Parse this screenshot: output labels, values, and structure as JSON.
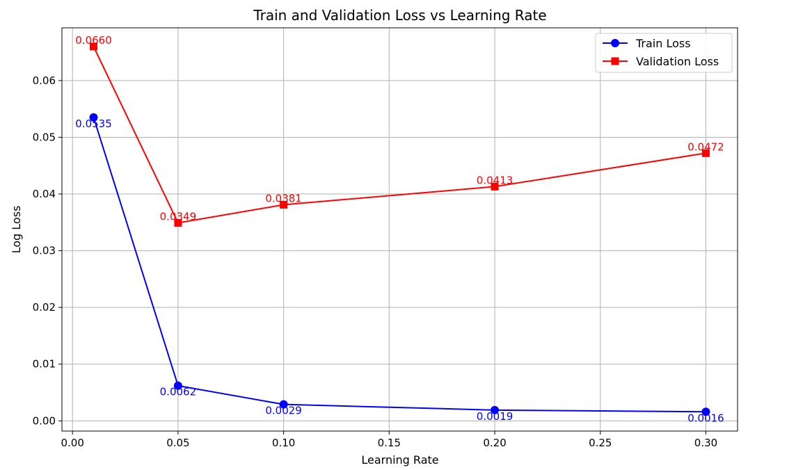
{
  "chart_data": {
    "type": "line",
    "title": "Train and Validation Loss vs Learning Rate",
    "xlabel": "Learning Rate",
    "ylabel": "Log Loss",
    "x": [
      0.01,
      0.05,
      0.1,
      0.2,
      0.3
    ],
    "xlim": [
      -0.005,
      0.315
    ],
    "ylim": [
      -0.0018,
      0.0693
    ],
    "xticks": [
      0.0,
      0.05,
      0.1,
      0.15,
      0.2,
      0.25,
      0.3
    ],
    "xtick_labels": [
      "0.00",
      "0.05",
      "0.10",
      "0.15",
      "0.20",
      "0.25",
      "0.30"
    ],
    "yticks": [
      0.0,
      0.01,
      0.02,
      0.03,
      0.04,
      0.05,
      0.06
    ],
    "ytick_labels": [
      "0.00",
      "0.01",
      "0.02",
      "0.03",
      "0.04",
      "0.05",
      "0.06"
    ],
    "grid": true,
    "legend_position": "top-right",
    "series": [
      {
        "name": "Train Loss",
        "color": "#0000ff",
        "marker": "circle",
        "values": [
          0.0535,
          0.0062,
          0.0029,
          0.0019,
          0.0016
        ],
        "labels": [
          "0.0535",
          "0.0062",
          "0.0029",
          "0.0019",
          "0.0016"
        ],
        "label_position": "below"
      },
      {
        "name": "Validation Loss",
        "color": "#ff0000",
        "marker": "square",
        "values": [
          0.066,
          0.0349,
          0.0381,
          0.0413,
          0.0472
        ],
        "labels": [
          "0.0660",
          "0.0349",
          "0.0381",
          "0.0413",
          "0.0472"
        ],
        "label_position": "above"
      }
    ]
  }
}
